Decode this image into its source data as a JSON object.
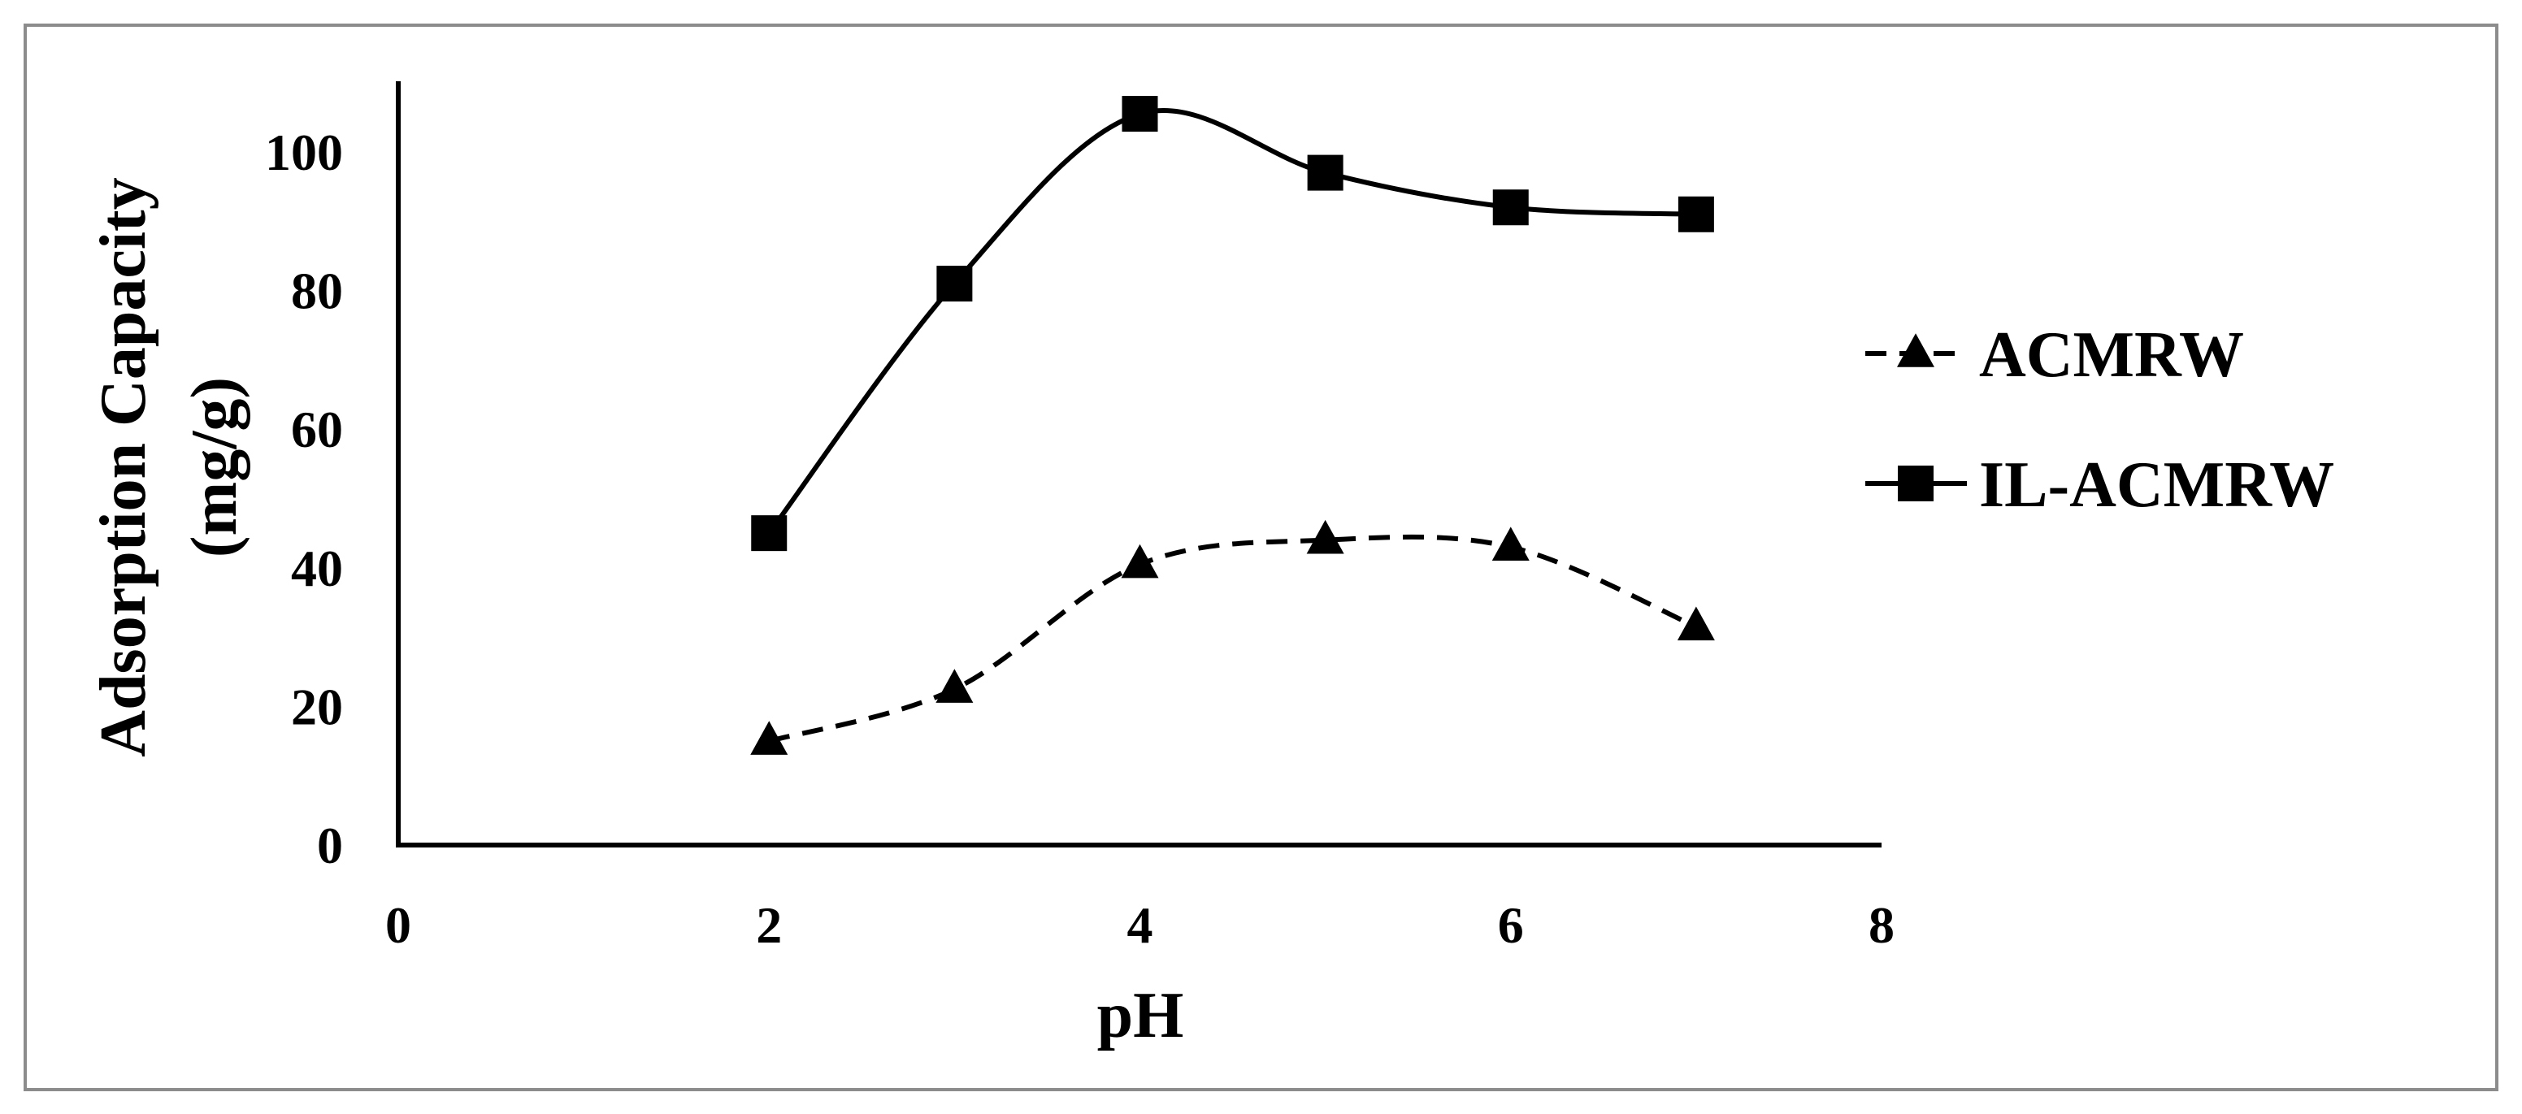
{
  "chart_data": {
    "type": "line",
    "xlabel": "pH",
    "ylabel_lines": [
      "Adsorption Capacity",
      "(mg/g)"
    ],
    "xlim": [
      0,
      8
    ],
    "ylim": [
      0,
      110
    ],
    "x_ticks": [
      0,
      2,
      4,
      6,
      8
    ],
    "y_ticks": [
      0,
      20,
      40,
      60,
      80,
      100
    ],
    "grid": false,
    "legend_position": "right",
    "series": [
      {
        "name": "ACMRW",
        "style": "dashed",
        "marker": "triangle",
        "color": "#000000",
        "x": [
          2,
          3,
          4,
          5,
          6,
          7
        ],
        "y": [
          15,
          22.5,
          40.5,
          44,
          43,
          31.5
        ]
      },
      {
        "name": "IL-ACMRW",
        "style": "solid",
        "marker": "square",
        "color": "#000000",
        "x": [
          2,
          3,
          4,
          5,
          6,
          7
        ],
        "y": [
          45,
          81,
          105.5,
          97,
          92,
          91
        ]
      }
    ]
  }
}
